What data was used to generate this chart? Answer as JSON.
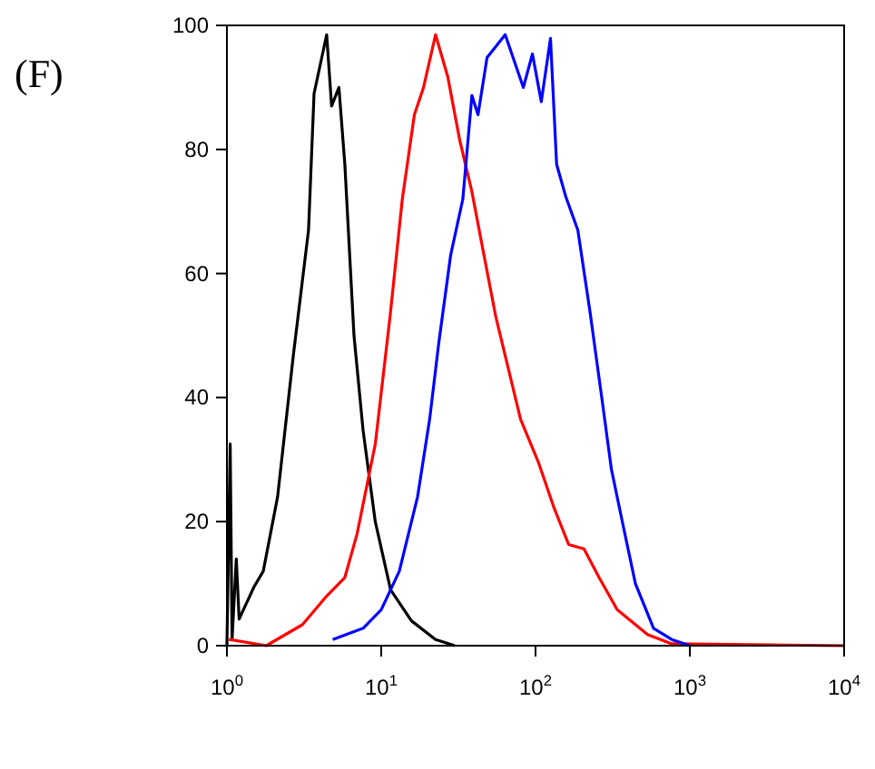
{
  "chart_data": {
    "type": "line",
    "title": "(F)",
    "log": "x",
    "xlim": [
      1,
      10000
    ],
    "ylim": [
      0,
      100
    ],
    "xticks": [
      {
        "value": 1,
        "label": "10$^{0}$"
      },
      {
        "value": 10,
        "label": "10$^{1}$"
      },
      {
        "value": 100,
        "label": "10$^{2}$"
      },
      {
        "value": 1000,
        "label": "10$^{3}$"
      },
      {
        "value": 10000,
        "label": "10$^{4}$"
      }
    ],
    "yticks": [
      0,
      20,
      40,
      60,
      80,
      100
    ],
    "grid": false,
    "marker": "none",
    "line_style": "solid",
    "series": [
      {
        "color": "#000000",
        "x": [
          1.0,
          1.05,
          1.08,
          1.15,
          1.2,
          1.5,
          1.72,
          2.13,
          2.7,
          3.38,
          3.67,
          4.43,
          4.77,
          5.32,
          5.81,
          6.66,
          7.63,
          9.15,
          11.5,
          15.7,
          22.5,
          30
        ],
        "values": [
          0,
          32.5,
          1,
          14,
          4.3,
          9.5,
          12,
          24,
          47,
          67,
          89,
          98.5,
          87,
          90,
          77.6,
          50,
          34.7,
          20,
          9,
          4,
          1,
          0
        ]
      },
      {
        "color": "#ff0000",
        "x": [
          1.03,
          1.8,
          3.09,
          4.43,
          5.81,
          6.97,
          9.15,
          11.4,
          13.7,
          16.4,
          18.8,
          22.5,
          27,
          32.2,
          38.6,
          46.3,
          55.3,
          69.8,
          80,
          105,
          131,
          164,
          206,
          258,
          338,
          532,
          763,
          10000
        ],
        "values": [
          1,
          0,
          3.4,
          8,
          11,
          18,
          32.5,
          53,
          72,
          85.6,
          90,
          98.5,
          91.7,
          81.6,
          73.3,
          63,
          53,
          42.6,
          36.5,
          29.4,
          22.4,
          16.3,
          15.6,
          11,
          5.8,
          1.8,
          0.3,
          0
        ]
      },
      {
        "color": "#0000ff",
        "x": [
          4.85,
          7.63,
          10,
          13.1,
          17.2,
          20.6,
          23.6,
          28.2,
          33.8,
          38.7,
          42.4,
          48.5,
          63.6,
          83.4,
          95.5,
          109,
          125,
          137,
          157,
          188,
          225,
          270,
          310,
          370,
          444,
          582,
          763,
          1000
        ],
        "values": [
          1,
          2.8,
          5.8,
          12,
          24,
          36.5,
          48.8,
          63,
          72,
          88.7,
          85.6,
          94.8,
          98.5,
          90,
          95.4,
          87.7,
          97.9,
          77.6,
          72.4,
          67,
          54,
          39.6,
          28.5,
          19.3,
          10,
          2.8,
          1,
          0
        ]
      }
    ]
  }
}
